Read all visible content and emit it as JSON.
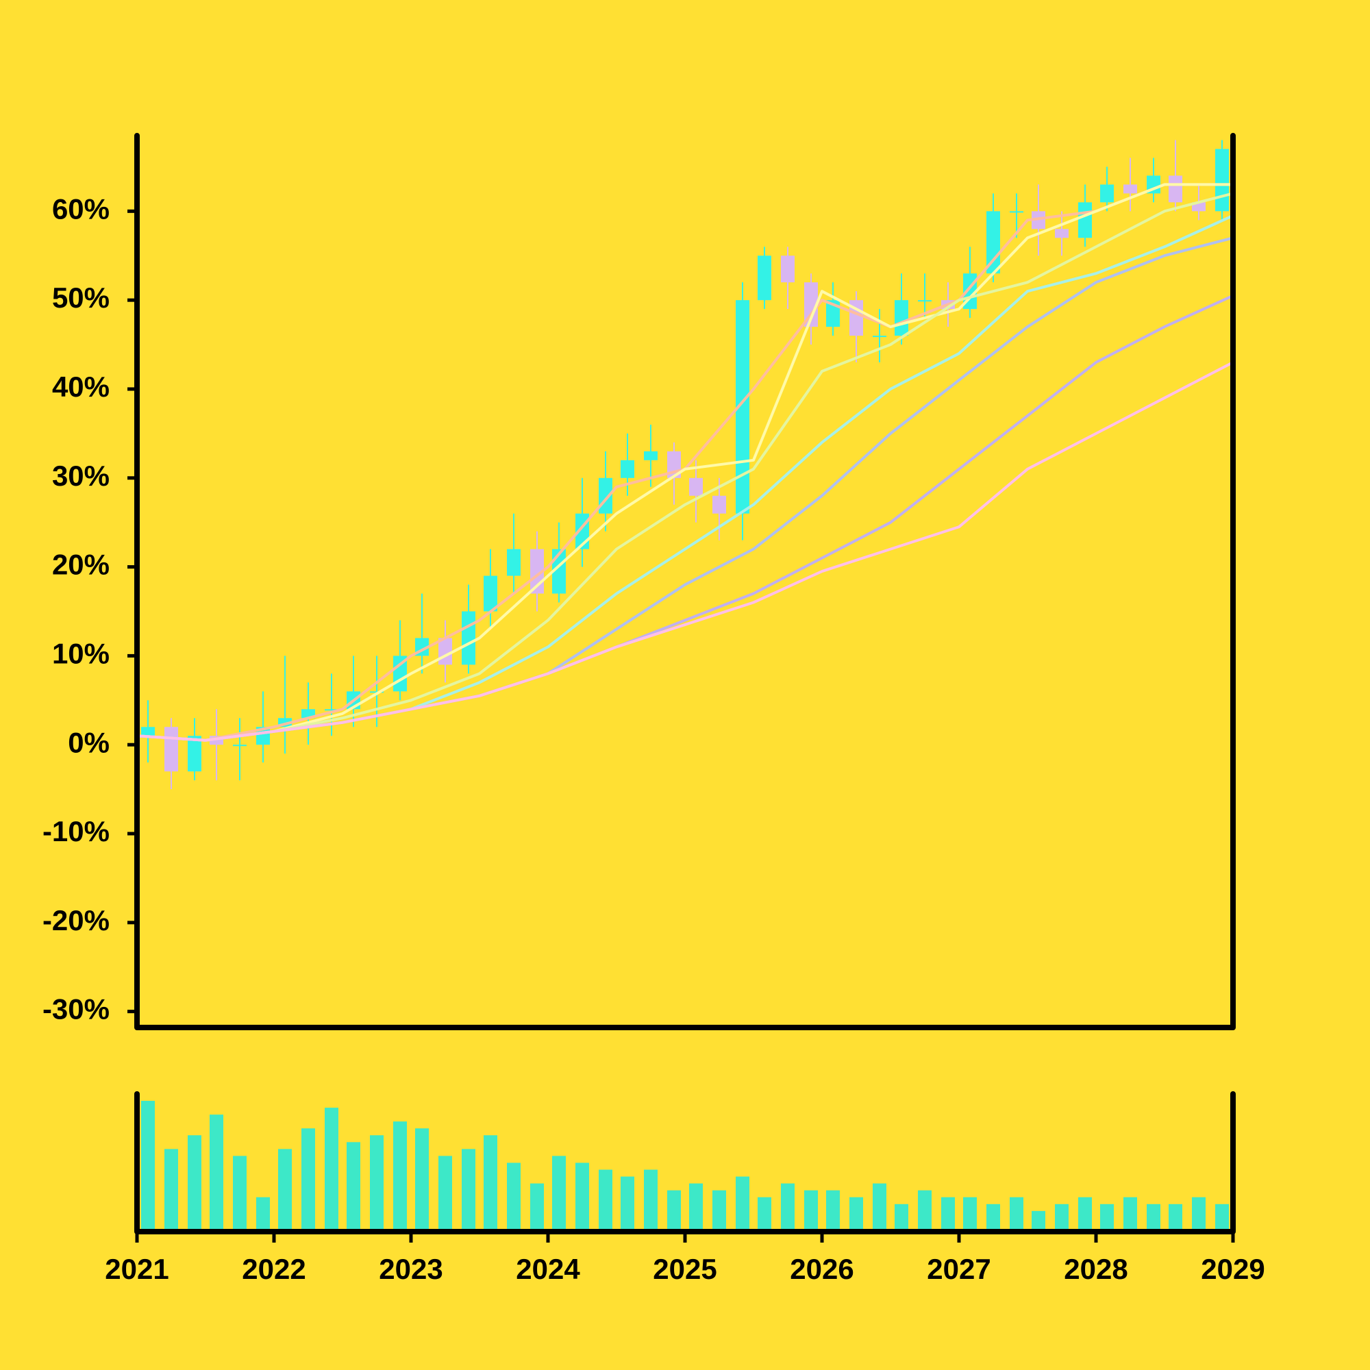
{
  "chart_data": {
    "type": "candlestick",
    "x": [
      2021.08,
      2021.25,
      2021.42,
      2021.58,
      2021.75,
      2021.92,
      2022.08,
      2022.25,
      2022.42,
      2022.58,
      2022.75,
      2022.92,
      2023.08,
      2023.25,
      2023.42,
      2023.58,
      2023.75,
      2023.92,
      2024.08,
      2024.25,
      2024.42,
      2024.58,
      2024.75,
      2024.92,
      2025.08,
      2025.25,
      2025.42,
      2025.58,
      2025.75,
      2025.92,
      2026.08,
      2026.25,
      2026.42,
      2026.58,
      2026.75,
      2026.92,
      2027.08,
      2027.25,
      2027.42,
      2027.58,
      2027.75,
      2027.92,
      2028.08,
      2028.25,
      2028.42,
      2028.58,
      2028.75,
      2028.92
    ],
    "open": [
      1,
      2,
      -3,
      1,
      0,
      0,
      2,
      3,
      4,
      4,
      6,
      6,
      10,
      12,
      9,
      15,
      19,
      22,
      17,
      22,
      26,
      30,
      32,
      33,
      30,
      28,
      26,
      50,
      55,
      52,
      47,
      50,
      46,
      46,
      50,
      50,
      49,
      53,
      60,
      60,
      58,
      57,
      61,
      63,
      62,
      64,
      61,
      60
    ],
    "close": [
      2,
      -3,
      1,
      0,
      0,
      2,
      3,
      4,
      4,
      6,
      6,
      10,
      12,
      9,
      15,
      19,
      22,
      17,
      22,
      26,
      30,
      32,
      33,
      30,
      28,
      26,
      50,
      55,
      52,
      47,
      50,
      46,
      46,
      50,
      50,
      49,
      53,
      60,
      60,
      58,
      57,
      61,
      63,
      62,
      64,
      61,
      60,
      67
    ],
    "high": [
      5,
      3,
      3,
      4,
      3,
      6,
      10,
      7,
      8,
      10,
      10,
      14,
      17,
      14,
      18,
      22,
      26,
      24,
      25,
      30,
      33,
      35,
      36,
      34,
      32,
      30,
      52,
      56,
      56,
      53,
      52,
      51,
      49,
      53,
      53,
      52,
      56,
      62,
      62,
      63,
      60,
      63,
      65,
      66,
      66,
      68,
      63,
      68
    ],
    "low": [
      -2,
      -5,
      -4,
      -4,
      -4,
      -2,
      -1,
      0,
      1,
      2,
      2,
      5,
      8,
      7,
      8,
      13,
      17,
      15,
      16,
      20,
      24,
      28,
      29,
      27,
      25,
      23,
      23,
      49,
      49,
      45,
      46,
      43,
      43,
      45,
      48,
      47,
      48,
      52,
      57,
      55,
      55,
      56,
      60,
      60,
      61,
      60,
      59,
      59
    ],
    "up_color": "#33f2e6",
    "down_color": "#d8b6f2",
    "volume": [
      95,
      60,
      70,
      85,
      55,
      25,
      60,
      75,
      90,
      65,
      70,
      80,
      75,
      55,
      60,
      70,
      50,
      35,
      55,
      50,
      45,
      40,
      45,
      30,
      35,
      30,
      40,
      25,
      35,
      30,
      30,
      25,
      35,
      20,
      30,
      25,
      25,
      20,
      25,
      15,
      20,
      25,
      20,
      25,
      20,
      20,
      25,
      20
    ],
    "volume_color": "#3de8c8",
    "volume_ylim": [
      0,
      100
    ],
    "series": [
      {
        "color": "#ffbe9e",
        "x": [
          2021,
          2021.5,
          2022,
          2022.5,
          2023,
          2023.5,
          2024,
          2024.5,
          2025,
          2025.5,
          2026,
          2026.5,
          2027,
          2027.5,
          2028,
          2028.5,
          2029
        ],
        "values": [
          1,
          0.5,
          2,
          4,
          10,
          14,
          20,
          29,
          31,
          40,
          50,
          47,
          50,
          59,
          60,
          63,
          63
        ]
      },
      {
        "color": "#fffaa8",
        "x": [
          2021,
          2021.5,
          2022,
          2022.5,
          2023,
          2023.5,
          2024,
          2024.5,
          2025,
          2025.5,
          2026,
          2026.5,
          2027,
          2027.5,
          2028,
          2028.5,
          2029
        ],
        "values": [
          1,
          0.5,
          1.5,
          3.5,
          8,
          12,
          19,
          26,
          31,
          32,
          51,
          47,
          49,
          57,
          60,
          63,
          63
        ]
      },
      {
        "color": "#e4f5a0",
        "x": [
          2021,
          2021.5,
          2022,
          2022.5,
          2023,
          2023.5,
          2024,
          2024.5,
          2025,
          2025.5,
          2026,
          2026.5,
          2027,
          2027.5,
          2028,
          2028.5,
          2029
        ],
        "values": [
          1,
          0.5,
          1.5,
          3,
          5,
          8,
          14,
          22,
          27,
          31,
          42,
          45,
          50,
          52,
          56,
          60,
          62
        ]
      },
      {
        "color": "#a8f0e8",
        "x": [
          2021,
          2021.5,
          2022,
          2022.5,
          2023,
          2023.5,
          2024,
          2024.5,
          2025,
          2025.5,
          2026,
          2026.5,
          2027,
          2027.5,
          2028,
          2028.5,
          2029
        ],
        "values": [
          1,
          0.5,
          1.5,
          2.5,
          4,
          7,
          11,
          17,
          22,
          27,
          34,
          40,
          44,
          51,
          53,
          56,
          59.5
        ]
      },
      {
        "color": "#b0c0f0",
        "x": [
          2021,
          2021.5,
          2022,
          2022.5,
          2023,
          2023.5,
          2024,
          2024.5,
          2025,
          2025.5,
          2026,
          2026.5,
          2027,
          2027.5,
          2028,
          2028.5,
          2029
        ],
        "values": [
          1,
          0.5,
          1.5,
          2.5,
          4,
          5.5,
          8,
          13,
          18,
          22,
          28,
          35,
          41,
          47,
          52,
          55,
          57
        ]
      },
      {
        "color": "#c0b0f0",
        "x": [
          2021,
          2021.5,
          2022,
          2022.5,
          2023,
          2023.5,
          2024,
          2024.5,
          2025,
          2025.5,
          2026,
          2026.5,
          2027,
          2027.5,
          2028,
          2028.5,
          2029
        ],
        "values": [
          1,
          0.5,
          1.5,
          2.5,
          4,
          5.5,
          8,
          11,
          14,
          17,
          21,
          25,
          31,
          37,
          43,
          47,
          50.5
        ]
      },
      {
        "color": "#ffc0e8",
        "x": [
          2021,
          2021.5,
          2022,
          2022.5,
          2023,
          2023.5,
          2024,
          2024.5,
          2025,
          2025.5,
          2026,
          2026.5,
          2027,
          2027.5,
          2028,
          2028.5,
          2029
        ],
        "values": [
          1,
          0.5,
          1.5,
          2.5,
          4,
          5.5,
          8,
          11,
          13.5,
          16,
          19.5,
          22,
          24.5,
          31,
          35,
          39,
          43
        ]
      }
    ],
    "xlim": [
      2021,
      2029
    ],
    "xticks": [
      2021,
      2022,
      2023,
      2024,
      2025,
      2026,
      2027,
      2028,
      2029
    ],
    "ylim": [
      -31.8,
      68.5
    ],
    "yticks": [
      {
        "value": -30,
        "label": "-30%"
      },
      {
        "value": -20,
        "label": "-20%"
      },
      {
        "value": -10,
        "label": "-10%"
      },
      {
        "value": 0,
        "label": "0%"
      },
      {
        "value": 10,
        "label": "10%"
      },
      {
        "value": 20,
        "label": "20%"
      },
      {
        "value": 30,
        "label": "30%"
      },
      {
        "value": 40,
        "label": "40%"
      },
      {
        "value": 50,
        "label": "50%"
      },
      {
        "value": 60,
        "label": "60%"
      }
    ]
  }
}
